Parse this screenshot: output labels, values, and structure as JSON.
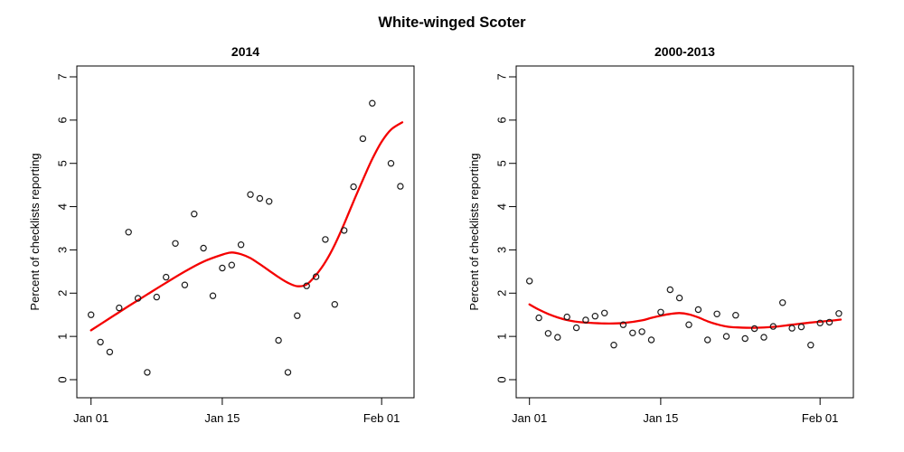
{
  "title": "White-winged Scoter",
  "ylabel": "Percent of checklists reporting",
  "colors": {
    "trend_line": "#f40000",
    "points": "#1a1a1a",
    "axis": "#000000",
    "background": "#ffffff"
  },
  "axes": {
    "ylim": [
      0,
      7
    ],
    "y_ticks": [
      0,
      1,
      2,
      3,
      4,
      5,
      6,
      7
    ],
    "x_tick_labels": [
      "Jan 01",
      "Jan 15",
      "Feb 01"
    ],
    "x_tick_days": [
      0,
      14,
      31
    ]
  },
  "chart_data": [
    {
      "type": "scatter",
      "title": "2014",
      "marker": "open-circle",
      "points": [
        [
          0,
          1.5
        ],
        [
          1,
          0.87
        ],
        [
          2,
          0.64
        ],
        [
          3,
          1.66
        ],
        [
          4,
          3.41
        ],
        [
          5,
          1.88
        ],
        [
          6,
          0.17
        ],
        [
          7,
          1.91
        ],
        [
          8,
          2.37
        ],
        [
          9,
          3.15
        ],
        [
          10,
          2.19
        ],
        [
          11,
          3.83
        ],
        [
          12,
          3.04
        ],
        [
          13,
          1.94
        ],
        [
          14,
          2.58
        ],
        [
          15,
          2.65
        ],
        [
          16,
          3.12
        ],
        [
          17,
          4.28
        ],
        [
          18,
          4.19
        ],
        [
          19,
          4.12
        ],
        [
          20,
          0.91
        ],
        [
          21,
          0.17
        ],
        [
          22,
          1.48
        ],
        [
          23,
          2.17
        ],
        [
          24,
          2.38
        ],
        [
          25,
          3.24
        ],
        [
          26,
          1.74
        ],
        [
          27,
          3.45
        ],
        [
          28,
          4.46
        ],
        [
          29,
          5.57
        ],
        [
          30,
          6.39
        ],
        [
          32,
          5.0
        ],
        [
          33,
          4.47
        ]
      ],
      "smooth": [
        [
          0,
          1.14
        ],
        [
          2,
          1.42
        ],
        [
          4,
          1.7
        ],
        [
          6,
          1.97
        ],
        [
          8,
          2.24
        ],
        [
          10,
          2.5
        ],
        [
          12,
          2.73
        ],
        [
          14,
          2.89
        ],
        [
          15,
          2.94
        ],
        [
          16,
          2.9
        ],
        [
          17,
          2.81
        ],
        [
          18,
          2.67
        ],
        [
          19,
          2.52
        ],
        [
          20,
          2.37
        ],
        [
          21,
          2.24
        ],
        [
          22,
          2.16
        ],
        [
          23,
          2.2
        ],
        [
          24,
          2.42
        ],
        [
          25,
          2.72
        ],
        [
          26,
          3.12
        ],
        [
          27,
          3.6
        ],
        [
          28,
          4.12
        ],
        [
          29,
          4.62
        ],
        [
          30,
          5.1
        ],
        [
          31,
          5.5
        ],
        [
          32,
          5.78
        ],
        [
          33.2,
          5.95
        ]
      ]
    },
    {
      "type": "scatter",
      "title": "2000-2013",
      "marker": "open-circle",
      "points": [
        [
          0,
          2.28
        ],
        [
          1,
          1.43
        ],
        [
          2,
          1.07
        ],
        [
          3,
          0.98
        ],
        [
          4,
          1.45
        ],
        [
          5,
          1.2
        ],
        [
          6,
          1.38
        ],
        [
          7,
          1.47
        ],
        [
          8,
          1.54
        ],
        [
          9,
          0.8
        ],
        [
          10,
          1.27
        ],
        [
          11,
          1.08
        ],
        [
          12,
          1.11
        ],
        [
          13,
          0.92
        ],
        [
          14,
          1.56
        ],
        [
          15,
          2.08
        ],
        [
          16,
          1.89
        ],
        [
          17,
          1.27
        ],
        [
          18,
          1.62
        ],
        [
          19,
          0.92
        ],
        [
          20,
          1.52
        ],
        [
          21,
          1.0
        ],
        [
          22,
          1.49
        ],
        [
          23,
          0.95
        ],
        [
          24,
          1.18
        ],
        [
          25,
          0.98
        ],
        [
          26,
          1.23
        ],
        [
          27,
          1.78
        ],
        [
          28,
          1.19
        ],
        [
          29,
          1.22
        ],
        [
          30,
          0.8
        ],
        [
          31,
          1.31
        ],
        [
          32,
          1.33
        ],
        [
          33,
          1.53
        ]
      ],
      "smooth": [
        [
          0,
          1.74
        ],
        [
          1,
          1.62
        ],
        [
          2,
          1.52
        ],
        [
          3,
          1.44
        ],
        [
          4,
          1.38
        ],
        [
          5,
          1.34
        ],
        [
          6,
          1.32
        ],
        [
          8,
          1.3
        ],
        [
          10,
          1.31
        ],
        [
          12,
          1.37
        ],
        [
          13,
          1.43
        ],
        [
          14,
          1.48
        ],
        [
          15,
          1.52
        ],
        [
          16,
          1.54
        ],
        [
          17,
          1.51
        ],
        [
          18,
          1.44
        ],
        [
          19,
          1.35
        ],
        [
          20,
          1.28
        ],
        [
          21,
          1.23
        ],
        [
          22,
          1.21
        ],
        [
          24,
          1.2
        ],
        [
          26,
          1.22
        ],
        [
          28,
          1.27
        ],
        [
          30,
          1.32
        ],
        [
          32,
          1.36
        ],
        [
          33.2,
          1.39
        ]
      ]
    }
  ]
}
